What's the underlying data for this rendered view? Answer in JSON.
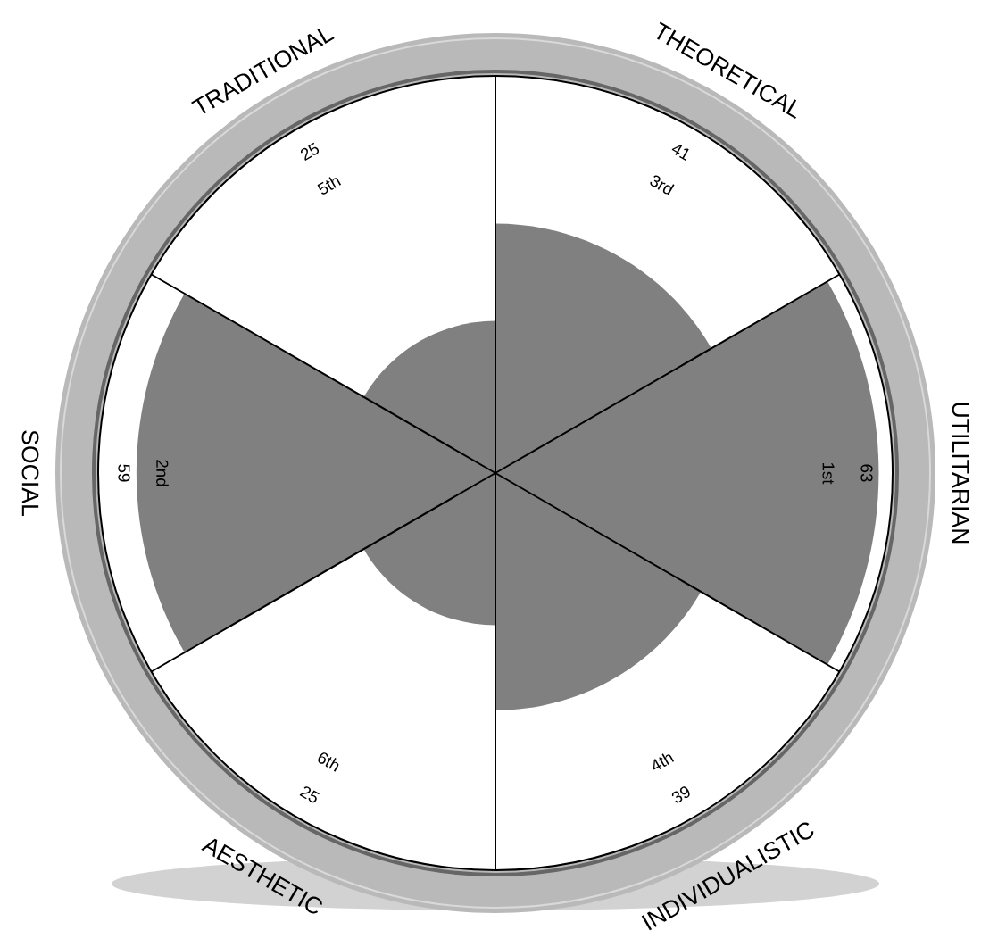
{
  "chart_data": {
    "type": "other",
    "categories": [
      "THEORETICAL",
      "UTILITARIAN",
      "INDIVIDUALISTIC",
      "AESTHETIC",
      "SOCIAL",
      "TRADITIONAL"
    ],
    "values": [
      41,
      63,
      39,
      25,
      59,
      25
    ],
    "color": "#808080",
    "data_labels": true,
    "annotations": [
      "3rd",
      "1st",
      "4th",
      "6th",
      "2nd",
      "5th"
    ]
  }
}
